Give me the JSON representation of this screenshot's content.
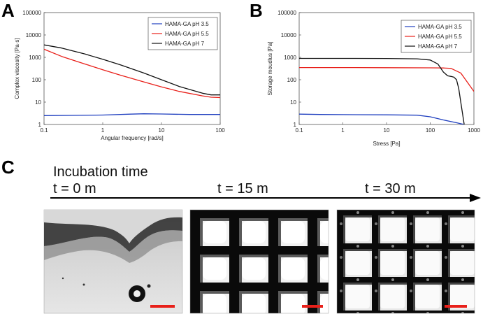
{
  "panel_labels": [
    "A",
    "B",
    "C"
  ],
  "legend_colors": [
    "#1f3fbf",
    "#e8201a",
    "#111111"
  ],
  "chart_data": [
    {
      "type": "line",
      "xscale": "log",
      "yscale": "log",
      "xlim": [
        0.1,
        100
      ],
      "ylim": [
        1,
        100000
      ],
      "xlabel": "Angular frequency [rad/s]",
      "ylabel": "Complex viscosity  [Pa·s]",
      "xticks": [
        "0.1",
        "1",
        "10",
        "100"
      ],
      "yticks": [
        "1",
        "10",
        "100",
        "1000",
        "10000",
        "100000"
      ],
      "legend_position": "top-right",
      "series": [
        {
          "name": "HAMA-GA pH 3.5",
          "color": "#1f3fbf",
          "x": [
            0.1,
            0.3,
            1,
            3,
            5,
            10,
            30,
            100
          ],
          "y": [
            2.5,
            2.55,
            2.65,
            2.9,
            3.0,
            2.95,
            2.8,
            2.8
          ]
        },
        {
          "name": "HAMA-GA pH 5.5",
          "color": "#e8201a",
          "x": [
            0.1,
            0.2,
            0.5,
            1,
            2,
            5,
            10,
            20,
            50,
            70,
            100
          ],
          "y": [
            2300,
            1100,
            500,
            280,
            160,
            80,
            48,
            30,
            19,
            16.5,
            16
          ]
        },
        {
          "name": "HAMA-GA pH 7",
          "color": "#111111",
          "x": [
            0.1,
            0.2,
            0.5,
            1,
            2,
            5,
            10,
            20,
            50,
            70,
            100
          ],
          "y": [
            3600,
            2600,
            1400,
            820,
            460,
            200,
            100,
            50,
            25,
            21,
            21
          ]
        }
      ]
    },
    {
      "type": "line",
      "xscale": "log",
      "yscale": "log",
      "xlim": [
        0.1,
        1000
      ],
      "ylim": [
        1,
        100000
      ],
      "xlabel": "Stress [Pa]",
      "ylabel": "Storage moudlus  [Pa]",
      "xticks": [
        "0.1",
        "1",
        "10",
        "100",
        "1000"
      ],
      "yticks": [
        "1",
        "10",
        "100",
        "1000",
        "10000",
        "100000"
      ],
      "legend_position": "top-right",
      "series": [
        {
          "name": "HAMA-GA pH 3.5",
          "color": "#1f3fbf",
          "x": [
            0.1,
            0.3,
            1,
            10,
            50,
            100,
            200,
            400,
            600
          ],
          "y": [
            2.9,
            2.8,
            2.75,
            2.7,
            2.6,
            2.2,
            1.6,
            1.2,
            1.0
          ]
        },
        {
          "name": "HAMA-GA pH 5.5",
          "color": "#e8201a",
          "x": [
            0.1,
            1,
            10,
            100,
            200,
            300,
            500,
            700,
            1000
          ],
          "y": [
            350,
            350,
            345,
            340,
            335,
            320,
            200,
            80,
            30
          ]
        },
        {
          "name": "HAMA-GA pH 7",
          "color": "#111111",
          "x": [
            0.1,
            1,
            10,
            50,
            100,
            150,
            200,
            250,
            300,
            350,
            400,
            450,
            500,
            600
          ],
          "y": [
            900,
            900,
            890,
            860,
            760,
            500,
            220,
            150,
            140,
            130,
            100,
            40,
            10,
            1
          ]
        }
      ]
    }
  ],
  "panel_c": {
    "title": "Incubation time",
    "time_labels": [
      "t = 0 m",
      "t = 15 m",
      "t = 30 m"
    ],
    "arrow_color": "#000000",
    "scale_bar_color": "#e8201a"
  }
}
